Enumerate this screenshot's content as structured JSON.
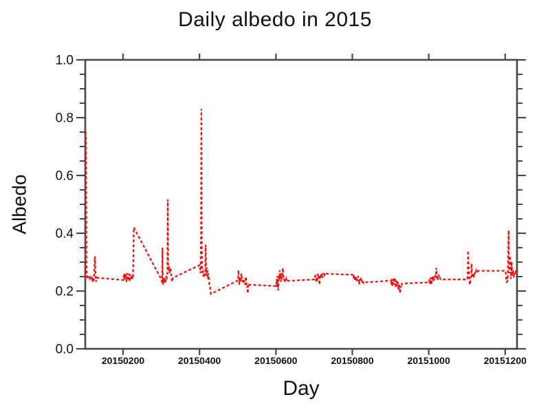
{
  "chart_data": {
    "type": "line",
    "title": "Daily albedo in 2015",
    "xlabel": "Day",
    "ylabel": "Albedo",
    "grid": false,
    "legend": "none",
    "frame": "box",
    "background_color": "#ffffff",
    "axis_color": "#474747",
    "text_color": "#111111",
    "x_axis": {
      "kind": "numeric-date YYYYMMDD",
      "min": 20150101,
      "max": 20151231,
      "major_ticks": [
        20150200,
        20150400,
        20150600,
        20150800,
        20151000,
        20151200
      ],
      "tick_labels": [
        "20150200",
        "20150400",
        "20150600",
        "20150800",
        "20151000",
        "20151200"
      ]
    },
    "y_axis": {
      "min": 0.0,
      "max": 1.0,
      "major_tick_step": 0.2,
      "minor_tick_step": 0.05,
      "tick_labels": [
        "0.0",
        "0.2",
        "0.4",
        "0.6",
        "0.8",
        "1.0"
      ]
    },
    "series": [
      {
        "name": "daily-albedo",
        "color": "#f80d0d",
        "style": "dashed",
        "daily_values_by_month": {
          "201501": [
            0.245,
            0.755,
            0.73,
            0.27,
            0.252,
            0.248,
            0.25,
            0.247,
            0.252,
            0.245,
            0.25,
            0.246,
            0.243,
            0.247,
            0.244,
            0.24,
            0.244,
            0.246,
            0.241,
            0.244,
            0.238,
            0.242,
            0.24,
            0.25,
            0.275,
            0.32,
            0.3,
            0.26,
            0.232,
            0.242,
            0.246
          ],
          "201502": [
            0.238,
            0.255,
            0.24,
            0.26,
            0.242,
            0.252,
            0.262,
            0.244,
            0.232,
            0.25,
            0.262,
            0.248,
            0.236,
            0.252,
            0.26,
            0.246,
            0.232,
            0.248,
            0.258,
            0.242,
            0.252,
            0.238,
            0.246,
            0.256,
            0.242,
            0.252,
            0.31,
            0.42
          ],
          "201503": [
            0.238,
            0.225,
            0.35,
            0.252,
            0.222,
            0.238,
            0.244,
            0.23,
            0.246,
            0.236,
            0.226,
            0.242,
            0.252,
            0.24,
            0.256,
            0.262,
            0.517,
            0.292,
            0.272,
            0.285,
            0.276,
            0.262,
            0.272,
            0.282,
            0.266,
            0.256,
            0.246,
            0.232,
            0.237,
            0.242,
            0.246
          ],
          "201504": [
            0.29,
            0.272,
            0.262,
            0.4,
            0.83,
            0.35,
            0.282,
            0.262,
            0.272,
            0.252,
            0.262,
            0.247,
            0.252,
            0.262,
            0.252,
            0.36,
            0.302,
            0.262,
            0.282,
            0.252,
            0.272,
            0.242,
            0.262,
            0.252,
            0.237,
            0.222,
            0.217,
            0.212,
            0.202,
            0.19
          ],
          "201505": [
            0.237,
            0.272,
            0.252,
            0.222,
            0.237,
            0.247,
            0.232,
            0.242,
            0.252,
            0.26,
            0.242,
            0.232,
            0.237,
            0.242,
            0.232,
            0.227,
            0.237,
            0.232,
            0.222,
            0.232,
            0.25,
            0.242,
            0.222,
            0.212,
            0.217,
            0.192,
            0.202,
            0.222,
            0.217,
            0.222,
            0.222
          ],
          "201506": [
            0.217,
            0.242,
            0.212,
            0.252,
            0.222,
            0.202,
            0.232,
            0.252,
            0.242,
            0.272,
            0.242,
            0.257,
            0.232,
            0.247,
            0.262,
            0.242,
            0.252,
            0.28,
            0.262,
            0.247,
            0.237,
            0.242,
            0.232,
            0.237,
            0.242,
            0.237,
            0.242,
            0.237,
            0.232,
            0.235
          ],
          "201507": [
            0.24,
            0.252,
            0.246,
            0.256,
            0.242,
            0.232,
            0.246,
            0.236,
            0.252,
            0.26,
            0.246,
            0.256,
            0.242,
            0.222,
            0.236,
            0.252,
            0.246,
            0.256,
            0.262,
            0.252,
            0.256,
            0.246,
            0.252,
            0.262,
            0.256,
            0.262,
            0.256,
            0.26,
            0.258,
            0.257,
            0.26
          ],
          "201508": [
            0.256,
            0.25,
            0.246,
            0.256,
            0.242,
            0.25,
            0.236,
            0.246,
            0.252,
            0.242,
            0.232,
            0.246,
            0.236,
            0.242,
            0.252,
            0.246,
            0.236,
            0.222,
            0.236,
            0.242,
            0.232,
            0.236,
            0.246,
            0.242,
            0.236,
            0.23,
            0.236,
            0.23,
            0.228,
            0.232,
            0.23
          ],
          "201509": [
            0.236,
            0.222,
            0.242,
            0.232,
            0.217,
            0.227,
            0.242,
            0.236,
            0.222,
            0.232,
            0.246,
            0.236,
            0.222,
            0.212,
            0.227,
            0.236,
            0.222,
            0.217,
            0.232,
            0.222,
            0.202,
            0.212,
            0.222,
            0.207,
            0.192,
            0.202,
            0.217,
            0.212,
            0.22,
            0.226
          ],
          "201510": [
            0.23,
            0.242,
            0.222,
            0.237,
            0.247,
            0.232,
            0.222,
            0.237,
            0.247,
            0.237,
            0.252,
            0.242,
            0.232,
            0.242,
            0.252,
            0.247,
            0.257,
            0.247,
            0.262,
            0.28,
            0.262,
            0.247,
            0.237,
            0.247,
            0.252,
            0.257,
            0.247,
            0.25,
            0.247,
            0.243,
            0.24
          ],
          "201511": [
            0.24,
            0.252,
            0.34,
            0.3,
            0.262,
            0.242,
            0.227,
            0.222,
            0.237,
            0.247,
            0.252,
            0.295,
            0.272,
            0.247,
            0.257,
            0.247,
            0.252,
            0.262,
            0.257,
            0.262,
            0.266,
            0.262,
            0.266,
            0.27,
            0.266,
            0.268,
            0.27,
            0.268,
            0.27,
            0.27
          ],
          "201512": [
            0.27,
            0.252,
            0.237,
            0.228,
            0.247,
            0.232,
            0.252,
            0.33,
            0.41,
            0.302,
            0.262,
            0.282,
            0.322,
            0.272,
            0.242,
            0.262,
            0.302,
            0.272,
            0.252,
            0.262,
            0.272,
            0.257,
            0.247,
            0.252,
            0.262,
            0.257,
            0.262,
            0.266,
            0.262,
            0.257,
            0.262
          ]
        }
      }
    ]
  }
}
